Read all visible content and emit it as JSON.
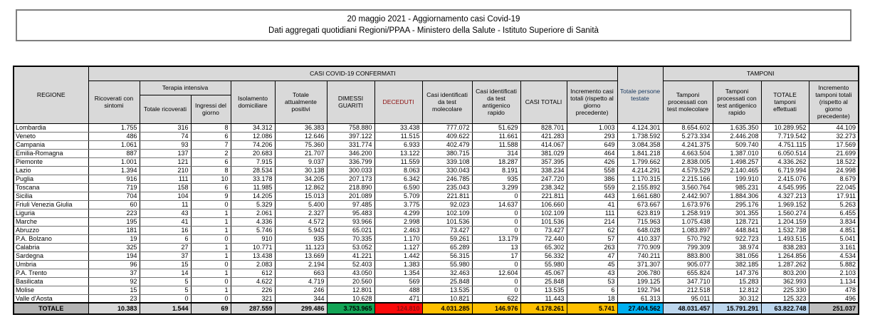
{
  "title": {
    "line1": "20 maggio 2021 - Aggiornamento casi Covid-19",
    "line2": "Dati aggregati quotidiani Regioni/PPAA - Ministero della Salute - Istituto Superiore di Sanità"
  },
  "colors": {
    "green": "#13a456",
    "red": "#fb0a0a",
    "yellow": "#ffc000",
    "cyan": "#00b0f0",
    "light_blue": "#bdd7ee",
    "header_gray": "#d9d9d9",
    "region_gray": "#b3b3b3"
  },
  "table": {
    "headers": {
      "regione": "REGIONE",
      "casi_group": "CASI COVID-19 CONFERMATI",
      "tamponi_group": "TAMPONI",
      "terapia_group": "Terapia intensiva",
      "ricoverati": "Ricoverati con sintomi",
      "terapia_totale": "Totale ricoverati",
      "terapia_ingressi": "Ingressi del giorno",
      "isolamento": "Isolamento domiciliare",
      "positivi": "Totale attualmente positivi",
      "dimessi": "DIMESSI GUARITI",
      "deceduti": "DECEDUTI",
      "casi_molecolare": "Casi identificati da test molecolare",
      "casi_antigenico": "Casi identificati da test antigenico rapido",
      "casi_totali": "CASI TOTALI",
      "incremento_casi": "Incremento casi totali (rispetto al giorno precedente)",
      "persone_testate": "Totale persone testate",
      "tamponi_molecolare": "Tamponi processati con test molecolare",
      "tamponi_antigenico": "Tamponi processati con test antigenico rapido",
      "tamponi_totale": "TOTALE tamponi effettuati",
      "incremento_tamponi": "Incremento tamponi totali (rispetto al giorno precedente)"
    },
    "regions": [
      {
        "name": "Lombardia",
        "values": [
          "1.755",
          "316",
          "8",
          "34.312",
          "36.383",
          "758.880",
          "33.438",
          "777.072",
          "51.629",
          "828.701",
          "1.003",
          "4.124.301",
          "8.654.602",
          "1.635.350",
          "10.289.952",
          "44.109"
        ]
      },
      {
        "name": "Veneto",
        "values": [
          "486",
          "74",
          "6",
          "12.086",
          "12.646",
          "397.122",
          "11.515",
          "409.622",
          "11.661",
          "421.283",
          "293",
          "1.738.592",
          "5.273.334",
          "2.446.208",
          "7.719.542",
          "32.273"
        ]
      },
      {
        "name": "Campania",
        "values": [
          "1.061",
          "93",
          "7",
          "74.206",
          "75.360",
          "331.774",
          "6.933",
          "402.479",
          "11.588",
          "414.067",
          "649",
          "3.084.358",
          "4.241.375",
          "509.740",
          "4.751.115",
          "17.569"
        ]
      },
      {
        "name": "Emilia-Romagna",
        "values": [
          "887",
          "137",
          "2",
          "20.683",
          "21.707",
          "346.200",
          "13.122",
          "380.715",
          "314",
          "381.029",
          "464",
          "1.841.218",
          "4.663.504",
          "1.387.010",
          "6.050.514",
          "21.699"
        ]
      },
      {
        "name": "Piemonte",
        "values": [
          "1.001",
          "121",
          "6",
          "7.915",
          "9.037",
          "336.799",
          "11.559",
          "339.108",
          "18.287",
          "357.395",
          "426",
          "1.799.662",
          "2.838.005",
          "1.498.257",
          "4.336.262",
          "18.522"
        ]
      },
      {
        "name": "Lazio",
        "values": [
          "1.394",
          "210",
          "8",
          "28.534",
          "30.138",
          "300.033",
          "8.063",
          "330.043",
          "8.191",
          "338.234",
          "558",
          "4.214.291",
          "4.579.529",
          "2.140.465",
          "6.719.994",
          "24.998"
        ]
      },
      {
        "name": "Puglia",
        "values": [
          "916",
          "111",
          "10",
          "33.178",
          "34.205",
          "207.173",
          "6.342",
          "246.785",
          "935",
          "247.720",
          "386",
          "1.170.315",
          "2.215.166",
          "199.910",
          "2.415.076",
          "8.679"
        ]
      },
      {
        "name": "Toscana",
        "values": [
          "719",
          "158",
          "6",
          "11.985",
          "12.862",
          "218.890",
          "6.590",
          "235.043",
          "3.299",
          "238.342",
          "559",
          "2.155.892",
          "3.560.764",
          "985.231",
          "4.545.995",
          "22.045"
        ]
      },
      {
        "name": "Sicilia",
        "values": [
          "704",
          "104",
          "9",
          "14.205",
          "15.013",
          "201.089",
          "5.709",
          "221.811",
          "0",
          "221.811",
          "443",
          "1.661.680",
          "2.442.907",
          "1.884.306",
          "4.327.213",
          "17.911"
        ]
      },
      {
        "name": "Friuli Venezia Giulia",
        "values": [
          "60",
          "11",
          "0",
          "5.329",
          "5.400",
          "97.485",
          "3.775",
          "92.023",
          "14.637",
          "106.660",
          "41",
          "673.667",
          "1.673.976",
          "295.176",
          "1.969.152",
          "5.263"
        ]
      },
      {
        "name": "Liguria",
        "values": [
          "223",
          "43",
          "1",
          "2.061",
          "2.327",
          "95.483",
          "4.299",
          "102.109",
          "0",
          "102.109",
          "111",
          "623.819",
          "1.258.919",
          "301.355",
          "1.560.274",
          "6.455"
        ]
      },
      {
        "name": "Marche",
        "values": [
          "195",
          "41",
          "1",
          "4.336",
          "4.572",
          "93.966",
          "2.998",
          "101.536",
          "0",
          "101.536",
          "214",
          "715.963",
          "1.075.438",
          "128.721",
          "1.204.159",
          "3.834"
        ]
      },
      {
        "name": "Abruzzo",
        "values": [
          "181",
          "16",
          "1",
          "5.746",
          "5.943",
          "65.021",
          "2.463",
          "73.427",
          "0",
          "73.427",
          "62",
          "648.028",
          "1.083.897",
          "448.841",
          "1.532.738",
          "4.851"
        ]
      },
      {
        "name": "P.A. Bolzano",
        "values": [
          "19",
          "6",
          "0",
          "910",
          "935",
          "70.335",
          "1.170",
          "59.261",
          "13.179",
          "72.440",
          "57",
          "410.337",
          "570.792",
          "922.723",
          "1.493.515",
          "5.041"
        ]
      },
      {
        "name": "Calabria",
        "values": [
          "325",
          "27",
          "1",
          "10.771",
          "11.123",
          "53.052",
          "1.127",
          "65.289",
          "13",
          "65.302",
          "263",
          "770.909",
          "799.309",
          "38.974",
          "838.283",
          "3.161"
        ]
      },
      {
        "name": "Sardegna",
        "values": [
          "194",
          "37",
          "1",
          "13.438",
          "13.669",
          "41.221",
          "1.442",
          "56.315",
          "17",
          "56.332",
          "47",
          "740.211",
          "883.800",
          "381.056",
          "1.264.856",
          "4.534"
        ]
      },
      {
        "name": "Umbria",
        "values": [
          "96",
          "15",
          "0",
          "2.083",
          "2.194",
          "52.403",
          "1.383",
          "55.980",
          "0",
          "55.980",
          "45",
          "371.307",
          "905.077",
          "382.185",
          "1.287.262",
          "5.882"
        ]
      },
      {
        "name": "P.A. Trento",
        "values": [
          "37",
          "14",
          "1",
          "612",
          "663",
          "43.050",
          "1.354",
          "32.463",
          "12.604",
          "45.067",
          "43",
          "206.780",
          "655.824",
          "147.376",
          "803.200",
          "2.103"
        ]
      },
      {
        "name": "Basilicata",
        "values": [
          "92",
          "5",
          "0",
          "4.622",
          "4.719",
          "20.560",
          "569",
          "25.848",
          "0",
          "25.848",
          "53",
          "199.125",
          "347.710",
          "15.283",
          "362.993",
          "1.134"
        ]
      },
      {
        "name": "Molise",
        "values": [
          "15",
          "5",
          "1",
          "226",
          "246",
          "12.801",
          "488",
          "13.535",
          "0",
          "13.535",
          "6",
          "192.794",
          "212.518",
          "12.812",
          "225.330",
          "478"
        ]
      },
      {
        "name": "Valle d'Aosta",
        "values": [
          "23",
          "0",
          "0",
          "321",
          "344",
          "10.628",
          "471",
          "10.821",
          "622",
          "11.443",
          "18",
          "61.313",
          "95.011",
          "30.312",
          "125.323",
          "496"
        ]
      }
    ],
    "total": {
      "label": "TOTALE",
      "values": [
        "10.383",
        "1.544",
        "69",
        "287.559",
        "299.486",
        "3.753.965",
        "124.810",
        "4.031.285",
        "146.976",
        "4.178.261",
        "5.741",
        "27.404.562",
        "48.031.457",
        "15.791.291",
        "63.822.748",
        "251.037"
      ]
    }
  }
}
